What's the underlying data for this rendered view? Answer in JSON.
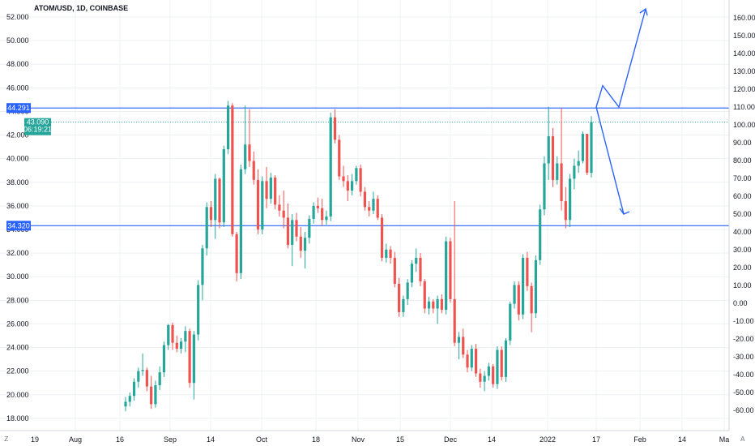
{
  "header": {
    "symbol_title": "ATOM/USD, 1D, COINBASE"
  },
  "colors": {
    "up": "#26a69a",
    "down": "#ef5350",
    "line": "#2962ff",
    "grid": "#eef0f3",
    "axis_text": "#131722",
    "background": "#ffffff"
  },
  "price_labels": {
    "resistance": "44.291",
    "support": "34.320",
    "last_price": "43.090",
    "countdown": "06:19:21"
  },
  "footer_icons": {
    "left": "Z",
    "right": "A"
  },
  "chart_data": {
    "type": "candlestick",
    "title": "ATOM/USD, 1D, COINBASE",
    "left_axis": {
      "ticks": [
        "52.000",
        "50.000",
        "48.000",
        "46.000",
        "44.000",
        "42.000",
        "40.000",
        "38.000",
        "36.000",
        "34.000",
        "32.000",
        "30.000",
        "28.000",
        "26.000",
        "24.000",
        "22.000",
        "20.000",
        "18.000"
      ],
      "range": [
        17,
        52.5
      ]
    },
    "right_axis": {
      "ticks": [
        "160.00",
        "150.00",
        "140.00",
        "130.00",
        "120.00",
        "110.00",
        "100.00",
        "90.00",
        "80.00",
        "70.00",
        "60.00",
        "50.00",
        "40.00",
        "30.00",
        "20.00",
        "10.00",
        "0.00",
        "-10.00",
        "-20.00",
        "-30.00",
        "-40.00",
        "-50.00",
        "-60.00"
      ]
    },
    "x_axis": {
      "ticks": [
        "19",
        "Aug",
        "16",
        "Sep",
        "14",
        "Oct",
        "18",
        "Nov",
        "15",
        "Dec",
        "14",
        "2022",
        "17",
        "Feb",
        "14",
        "Ma"
      ]
    },
    "horizontal_lines": [
      {
        "name": "resistance",
        "value": 44.291
      },
      {
        "name": "support",
        "value": 34.32
      },
      {
        "name": "last_price",
        "value": 43.09,
        "dotted": true
      }
    ],
    "projection_arrows": [
      {
        "direction": "up",
        "path_right_axis": [
          110,
          122,
          110,
          165
        ]
      },
      {
        "direction": "down",
        "path_right_axis": [
          110,
          50
        ]
      }
    ],
    "candles": [
      [
        19.0,
        19.8,
        18.6,
        19.4
      ],
      [
        19.4,
        20.2,
        19.0,
        19.9
      ],
      [
        19.9,
        21.4,
        19.5,
        21.1
      ],
      [
        21.1,
        22.3,
        20.6,
        22.0
      ],
      [
        22.0,
        23.5,
        21.6,
        22.1
      ],
      [
        22.1,
        22.3,
        20.3,
        20.7
      ],
      [
        20.7,
        21.6,
        18.8,
        19.2
      ],
      [
        19.2,
        21.2,
        18.9,
        20.8
      ],
      [
        20.8,
        22.4,
        20.4,
        21.9
      ],
      [
        21.9,
        24.5,
        21.5,
        24.2
      ],
      [
        24.2,
        26.0,
        23.8,
        25.9
      ],
      [
        25.9,
        26.1,
        23.8,
        24.4
      ],
      [
        24.4,
        25.0,
        23.6,
        23.9
      ],
      [
        23.9,
        24.8,
        23.5,
        24.5
      ],
      [
        24.5,
        25.8,
        23.6,
        25.4
      ],
      [
        25.4,
        25.6,
        20.6,
        21.0
      ],
      [
        21.0,
        25.4,
        19.6,
        25.1
      ],
      [
        25.1,
        29.7,
        24.6,
        29.3
      ],
      [
        29.3,
        32.7,
        28.0,
        32.4
      ],
      [
        32.4,
        36.3,
        31.8,
        35.9
      ],
      [
        35.9,
        36.4,
        34.2,
        34.8
      ],
      [
        34.8,
        38.7,
        33.2,
        38.3
      ],
      [
        38.3,
        38.4,
        34.1,
        34.6
      ],
      [
        34.6,
        41.1,
        34.2,
        40.8
      ],
      [
        40.8,
        44.9,
        40.4,
        44.5
      ],
      [
        44.5,
        44.7,
        33.4,
        33.6
      ],
      [
        33.6,
        33.8,
        29.6,
        30.3
      ],
      [
        30.3,
        39.5,
        29.8,
        39.1
      ],
      [
        39.1,
        44.5,
        38.7,
        41.2
      ],
      [
        41.2,
        44.2,
        39.3,
        39.8
      ],
      [
        39.8,
        40.6,
        37.8,
        38.2
      ],
      [
        38.2,
        39.1,
        33.6,
        34.0
      ],
      [
        34.0,
        38.5,
        33.6,
        38.1
      ],
      [
        38.1,
        39.3,
        35.8,
        36.6
      ],
      [
        36.6,
        38.8,
        36.2,
        38.4
      ],
      [
        38.4,
        38.6,
        35.7,
        36.1
      ],
      [
        36.1,
        36.9,
        35.1,
        35.6
      ],
      [
        35.6,
        37.3,
        34.1,
        35.0
      ],
      [
        35.0,
        36.2,
        32.4,
        32.7
      ],
      [
        32.7,
        35.3,
        30.9,
        34.8
      ],
      [
        34.8,
        35.4,
        33.0,
        33.4
      ],
      [
        33.4,
        34.2,
        31.6,
        32.2
      ],
      [
        32.2,
        33.8,
        30.7,
        33.3
      ],
      [
        33.3,
        35.2,
        32.8,
        34.9
      ],
      [
        34.9,
        36.3,
        34.5,
        36.0
      ],
      [
        36.0,
        36.7,
        35.4,
        35.8
      ],
      [
        35.8,
        36.6,
        34.3,
        34.8
      ],
      [
        34.8,
        35.6,
        34.4,
        35.1
      ],
      [
        35.1,
        43.9,
        34.7,
        43.5
      ],
      [
        43.5,
        44.2,
        41.3,
        41.6
      ],
      [
        41.6,
        42.0,
        38.2,
        38.5
      ],
      [
        38.5,
        39.4,
        37.6,
        38.1
      ],
      [
        38.1,
        38.6,
        36.4,
        37.3
      ],
      [
        37.3,
        38.7,
        36.9,
        38.1
      ],
      [
        38.1,
        39.4,
        37.8,
        39.2
      ],
      [
        39.2,
        39.5,
        36.8,
        37.2
      ],
      [
        37.2,
        37.6,
        35.6,
        35.9
      ],
      [
        35.9,
        36.4,
        35.1,
        35.6
      ],
      [
        35.6,
        37.2,
        35.3,
        36.6
      ],
      [
        36.6,
        36.9,
        34.8,
        35.0
      ],
      [
        35.0,
        35.3,
        31.3,
        31.6
      ],
      [
        31.6,
        32.8,
        31.2,
        32.3
      ],
      [
        32.3,
        32.6,
        31.1,
        31.6
      ],
      [
        31.6,
        32.1,
        29.1,
        29.4
      ],
      [
        29.4,
        29.9,
        26.6,
        27.0
      ],
      [
        27.0,
        28.4,
        26.6,
        28.1
      ],
      [
        28.1,
        29.8,
        27.6,
        29.5
      ],
      [
        29.5,
        31.4,
        29.1,
        31.1
      ],
      [
        31.1,
        32.4,
        30.4,
        31.6
      ],
      [
        31.6,
        32.0,
        29.2,
        29.6
      ],
      [
        29.6,
        29.8,
        26.9,
        27.3
      ],
      [
        27.3,
        28.3,
        26.8,
        27.9
      ],
      [
        27.9,
        28.1,
        26.9,
        27.3
      ],
      [
        27.3,
        28.4,
        26.0,
        28.1
      ],
      [
        28.1,
        28.5,
        26.9,
        27.2
      ],
      [
        27.2,
        33.4,
        26.8,
        33.0
      ],
      [
        33.0,
        33.3,
        27.8,
        28.1
      ],
      [
        28.1,
        36.4,
        24.1,
        24.4
      ],
      [
        24.4,
        25.3,
        23.0,
        24.9
      ],
      [
        24.9,
        25.6,
        23.1,
        23.4
      ],
      [
        23.4,
        23.8,
        21.9,
        22.3
      ],
      [
        22.3,
        24.2,
        22.0,
        23.9
      ],
      [
        23.9,
        24.3,
        21.5,
        21.8
      ],
      [
        21.8,
        22.2,
        20.6,
        21.1
      ],
      [
        21.1,
        22.0,
        20.3,
        21.6
      ],
      [
        21.6,
        22.7,
        21.2,
        22.4
      ],
      [
        22.4,
        22.6,
        20.6,
        20.9
      ],
      [
        20.9,
        24.1,
        20.5,
        23.8
      ],
      [
        23.8,
        24.1,
        21.2,
        21.5
      ],
      [
        21.5,
        24.8,
        21.1,
        24.6
      ],
      [
        24.6,
        27.9,
        24.2,
        27.7
      ],
      [
        27.7,
        29.6,
        27.3,
        29.3
      ],
      [
        29.3,
        29.6,
        26.3,
        26.8
      ],
      [
        26.8,
        31.9,
        26.4,
        31.6
      ],
      [
        31.6,
        32.1,
        28.8,
        29.2
      ],
      [
        29.2,
        29.5,
        25.3,
        26.9
      ],
      [
        26.9,
        31.8,
        26.5,
        31.4
      ],
      [
        31.4,
        36.1,
        31.0,
        35.7
      ],
      [
        35.7,
        40.2,
        35.2,
        39.6
      ],
      [
        39.6,
        44.4,
        38.2,
        41.9
      ],
      [
        41.9,
        42.6,
        37.6,
        38.2
      ],
      [
        38.2,
        40.2,
        37.8,
        39.6
      ],
      [
        39.6,
        44.3,
        35.6,
        36.4
      ],
      [
        36.4,
        37.6,
        34.1,
        34.8
      ],
      [
        34.8,
        38.7,
        34.2,
        38.3
      ],
      [
        38.3,
        40.0,
        37.4,
        39.4
      ],
      [
        39.4,
        40.7,
        38.8,
        39.8
      ],
      [
        39.8,
        42.3,
        39.6,
        42.1
      ],
      [
        42.1,
        42.1,
        38.6,
        38.8
      ],
      [
        38.8,
        43.6,
        38.4,
        43.1
      ]
    ]
  }
}
